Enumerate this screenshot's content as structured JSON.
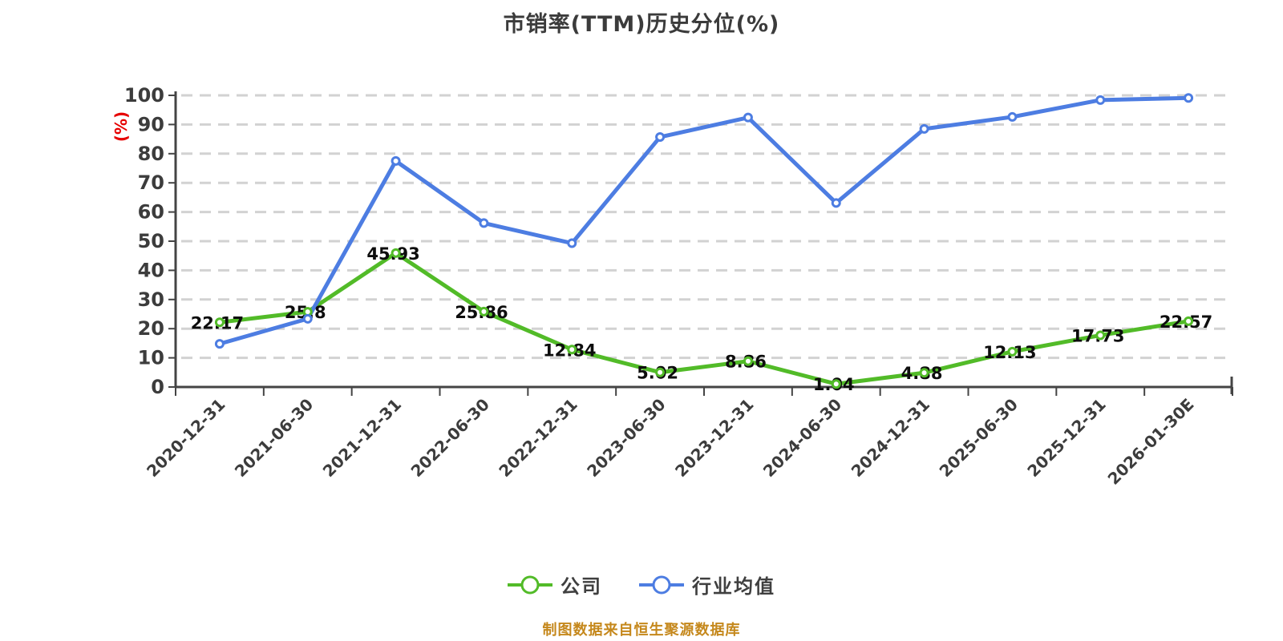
{
  "title": "市销率(TTM)历史分位(%)",
  "footer_note": "制图数据来自恒生聚源数据库",
  "colors": {
    "company_green": "#52bb28",
    "industry_blue": "#4d7de2",
    "title_text": "#3b3b3b",
    "axis_line": "#444444",
    "axis_text": "#3c3c3c",
    "gridline": "#d2d2d2",
    "data_label": "#0d0d0d",
    "unit_label_red": "#e60000",
    "footer_orange": "#c5881c",
    "marker_fill": "#ffffff"
  },
  "chart_data": {
    "type": "line",
    "title": "市销率(TTM)历史分位(%)",
    "xlabel": "",
    "ylabel": "(%)",
    "ylim": [
      0,
      100
    ],
    "ytick_step": 10,
    "grid": "horizontal-dashed",
    "legend_position": "bottom",
    "categories": [
      "2020-12-31",
      "2021-06-30",
      "2021-12-31",
      "2022-06-30",
      "2022-12-31",
      "2023-06-30",
      "2023-12-31",
      "2024-06-30",
      "2024-12-31",
      "2025-06-30",
      "2025-12-31",
      "2026-01-30E"
    ],
    "series": [
      {
        "key": "company",
        "name": "公司",
        "color": "#52bb28",
        "labels_shown": true,
        "values": [
          22.17,
          25.8,
          45.93,
          25.86,
          12.84,
          5.02,
          8.86,
          1.04,
          4.88,
          12.13,
          17.73,
          22.57
        ]
      },
      {
        "key": "industry",
        "name": "行业均值",
        "color": "#4d7de2",
        "labels_shown": false,
        "values_estimated": true,
        "values": [
          14.8,
          23.4,
          77.5,
          56.2,
          49.3,
          85.7,
          92.4,
          63.1,
          88.5,
          92.6,
          98.4,
          99.1
        ]
      }
    ]
  }
}
